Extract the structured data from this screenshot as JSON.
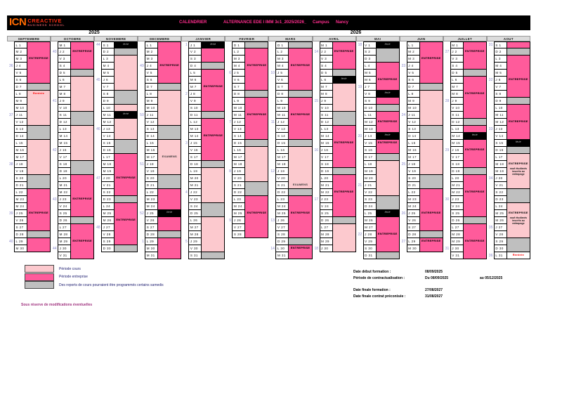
{
  "header": {
    "logo": {
      "icn": "ICN",
      "creactive": "CREACTIVE",
      "school": "BUSINESS SCHOOL"
    },
    "title_left": "CALENDRIER",
    "title_right": "ALTERNANCE EDE I IMM 3c1_2025/2026_",
    "campus_label": "Campus",
    "campus_value": "Nancy"
  },
  "year_groups": [
    {
      "label": "2025"
    },
    {
      "label": "2026"
    }
  ],
  "day_letters": [
    "L",
    "M",
    "M",
    "J",
    "V",
    "S",
    "D"
  ],
  "cell_types": {
    "e": "#FF5B9B",
    "c": "#FCC9CE",
    "w": "#BFBFBF",
    "f": "#000000",
    "b": "#FFFFFF"
  },
  "months": [
    {
      "name": "SEPTEMBRE",
      "days": 30,
      "start": 0,
      "spans": [
        {
          "f": 1,
          "t": 6,
          "t2": "e"
        },
        {
          "f": 7,
          "t": 7,
          "t2": "w"
        },
        {
          "f": 8,
          "t": 12,
          "t2": "c"
        },
        {
          "f": 13,
          "t": 14,
          "t2": "w"
        },
        {
          "f": 15,
          "t": 19,
          "t2": "c"
        },
        {
          "f": 20,
          "t": 21,
          "t2": "w"
        },
        {
          "f": 22,
          "t": 27,
          "t2": "e"
        },
        {
          "f": 28,
          "t": 28,
          "t2": "w"
        },
        {
          "f": 29,
          "t": 30,
          "t2": "e"
        }
      ],
      "labels": [
        {
          "day": 3,
          "text": "ENTREPRISE"
        },
        {
          "day": 8,
          "text": "Rentrée",
          "color": "#FF0000"
        },
        {
          "day": 25,
          "text": "ENTREPRISE"
        }
      ],
      "weeks": {
        "4": 36,
        "11": 37,
        "18": 38,
        "25": 39,
        "29": 40
      }
    },
    {
      "name": "OCTOBRE",
      "days": 31,
      "start": 2,
      "spans": [
        {
          "f": 1,
          "t": 4,
          "t2": "e"
        },
        {
          "f": 5,
          "t": 5,
          "t2": "w"
        },
        {
          "f": 6,
          "t": 10,
          "t2": "c"
        },
        {
          "f": 11,
          "t": 12,
          "t2": "w"
        },
        {
          "f": 13,
          "t": 17,
          "t2": "c"
        },
        {
          "f": 18,
          "t": 19,
          "t2": "w"
        },
        {
          "f": 20,
          "t": 25,
          "t2": "e"
        },
        {
          "f": 26,
          "t": 26,
          "t2": "w"
        },
        {
          "f": 27,
          "t": 31,
          "t2": "e"
        }
      ],
      "labels": [
        {
          "day": 2,
          "text": "ENTREPRISE"
        },
        {
          "day": 23,
          "text": "ENTREPRISE"
        },
        {
          "day": 29,
          "text": "ENTREPRISE"
        }
      ],
      "weeks": {
        "2": 40,
        "9": 41,
        "16": 42,
        "23": 43,
        "30": 44
      }
    },
    {
      "name": "NOVEMBRE",
      "days": 30,
      "start": 5,
      "spans": [
        {
          "f": 1,
          "t": 1,
          "t2": "f"
        },
        {
          "f": 2,
          "t": 2,
          "t2": "w"
        },
        {
          "f": 3,
          "t": 7,
          "t2": "c"
        },
        {
          "f": 8,
          "t": 9,
          "t2": "w"
        },
        {
          "f": 10,
          "t": 10,
          "t2": "c"
        },
        {
          "f": 11,
          "t": 11,
          "t2": "f"
        },
        {
          "f": 12,
          "t": 14,
          "t2": "c"
        },
        {
          "f": 15,
          "t": 16,
          "t2": "w"
        },
        {
          "f": 17,
          "t": 22,
          "t2": "e"
        },
        {
          "f": 23,
          "t": 23,
          "t2": "w"
        },
        {
          "f": 24,
          "t": 29,
          "t2": "e"
        },
        {
          "f": 30,
          "t": 30,
          "t2": "w"
        }
      ],
      "labels": [
        {
          "day": 1,
          "text": "férié"
        },
        {
          "day": 11,
          "text": "férié"
        },
        {
          "day": 20,
          "text": "ENTREPRISE"
        },
        {
          "day": 26,
          "text": "ENTREPRISE"
        }
      ],
      "weeks": {
        "1": 44,
        "6": 45,
        "13": 46,
        "20": 47,
        "27": 48
      }
    },
    {
      "name": "DECEMBRE",
      "days": 31,
      "start": 0,
      "spans": [
        {
          "f": 1,
          "t": 6,
          "t2": "e"
        },
        {
          "f": 7,
          "t": 7,
          "t2": "w"
        },
        {
          "f": 8,
          "t": 12,
          "t2": "c"
        },
        {
          "f": 13,
          "t": 14,
          "t2": "w"
        },
        {
          "f": 15,
          "t": 19,
          "t2": "c"
        },
        {
          "f": 20,
          "t": 21,
          "t2": "w"
        },
        {
          "f": 22,
          "t": 24,
          "t2": "e"
        },
        {
          "f": 25,
          "t": 25,
          "t2": "f"
        },
        {
          "f": 26,
          "t": 27,
          "t2": "e"
        },
        {
          "f": 28,
          "t": 28,
          "t2": "w"
        },
        {
          "f": 29,
          "t": 31,
          "t2": "e"
        }
      ],
      "labels": [
        {
          "day": 4,
          "text": "ENTREPRISE"
        },
        {
          "day": 17,
          "text": "EXAMENS",
          "color": "#333333"
        },
        {
          "day": 25,
          "text": "férié"
        }
      ],
      "weeks": {
        "4": 49,
        "11": 50,
        "18": 51,
        "25": 52,
        "29": 1
      }
    },
    {
      "name": "JANVIER",
      "days": 31,
      "start": 3,
      "spans": [
        {
          "f": 1,
          "t": 1,
          "t2": "f"
        },
        {
          "f": 2,
          "t": 3,
          "t2": "e"
        },
        {
          "f": 4,
          "t": 4,
          "t2": "w"
        },
        {
          "f": 5,
          "t": 10,
          "t2": "e"
        },
        {
          "f": 11,
          "t": 11,
          "t2": "w"
        },
        {
          "f": 12,
          "t": 17,
          "t2": "e"
        },
        {
          "f": 18,
          "t": 18,
          "t2": "w"
        },
        {
          "f": 19,
          "t": 23,
          "t2": "c"
        },
        {
          "f": 24,
          "t": 25,
          "t2": "w"
        },
        {
          "f": 26,
          "t": 30,
          "t2": "c"
        },
        {
          "f": 31,
          "t": 31,
          "t2": "w"
        }
      ],
      "labels": [
        {
          "day": 1,
          "text": "férié"
        },
        {
          "day": 7,
          "text": "ENTREPRISE"
        },
        {
          "day": 14,
          "text": "ENTREPRISE"
        }
      ],
      "weeks": {
        "1": 1,
        "8": 2,
        "15": 3,
        "22": 4,
        "29": 5
      }
    },
    {
      "name": "FEVRIER",
      "days": 28,
      "start": 6,
      "spans": [
        {
          "f": 1,
          "t": 1,
          "t2": "w"
        },
        {
          "f": 2,
          "t": 7,
          "t2": "e"
        },
        {
          "f": 8,
          "t": 8,
          "t2": "w"
        },
        {
          "f": 9,
          "t": 14,
          "t2": "e"
        },
        {
          "f": 15,
          "t": 15,
          "t2": "w"
        },
        {
          "f": 16,
          "t": 20,
          "t2": "c"
        },
        {
          "f": 21,
          "t": 22,
          "t2": "w"
        },
        {
          "f": 23,
          "t": 28,
          "t2": "e"
        }
      ],
      "labels": [
        {
          "day": 4,
          "text": "ENTREPRISE"
        },
        {
          "day": 11,
          "text": "ENTREPRISE"
        },
        {
          "day": 25,
          "text": "ENTREPRISE"
        }
      ],
      "weeks": {
        "5": 6,
        "12": 7,
        "19": 8,
        "26": 9
      }
    },
    {
      "name": "MARS",
      "days": 31,
      "start": 6,
      "spans": [
        {
          "f": 1,
          "t": 1,
          "t2": "w"
        },
        {
          "f": 2,
          "t": 7,
          "t2": "e"
        },
        {
          "f": 8,
          "t": 8,
          "t2": "w"
        },
        {
          "f": 9,
          "t": 14,
          "t2": "e"
        },
        {
          "f": 15,
          "t": 15,
          "t2": "w"
        },
        {
          "f": 16,
          "t": 21,
          "t2": "c"
        },
        {
          "f": 22,
          "t": 22,
          "t2": "w"
        },
        {
          "f": 23,
          "t": 28,
          "t2": "e"
        },
        {
          "f": 29,
          "t": 29,
          "t2": "w"
        },
        {
          "f": 30,
          "t": 31,
          "t2": "e"
        }
      ],
      "labels": [
        {
          "day": 4,
          "text": "ENTREPRISE"
        },
        {
          "day": 11,
          "text": "ENTREPRISE"
        },
        {
          "day": 21,
          "text": "EXAMENS",
          "color": "#333333"
        },
        {
          "day": 25,
          "text": "ENTREPRISE"
        },
        {
          "day": 30,
          "text": "ENTREPRISE"
        }
      ],
      "weeks": {
        "5": 10,
        "12": 11,
        "19": 12,
        "26": 13,
        "30": 14
      }
    },
    {
      "name": "AVRIL",
      "days": 30,
      "start": 2,
      "spans": [
        {
          "f": 1,
          "t": 4,
          "t2": "e"
        },
        {
          "f": 5,
          "t": 5,
          "t2": "w"
        },
        {
          "f": 6,
          "t": 6,
          "t2": "f"
        },
        {
          "f": 7,
          "t": 10,
          "t2": "c"
        },
        {
          "f": 11,
          "t": 12,
          "t2": "w"
        },
        {
          "f": 13,
          "t": 18,
          "t2": "e"
        },
        {
          "f": 19,
          "t": 19,
          "t2": "w"
        },
        {
          "f": 20,
          "t": 25,
          "t2": "e"
        },
        {
          "f": 26,
          "t": 26,
          "t2": "w"
        },
        {
          "f": 27,
          "t": 30,
          "t2": "c"
        }
      ],
      "labels": [
        {
          "day": 2,
          "text": "ENTREPRISE"
        },
        {
          "day": 6,
          "text": "férié"
        },
        {
          "day": 15,
          "text": "ENTREPRISE"
        },
        {
          "day": 22,
          "text": "ENTREPRISE"
        }
      ],
      "weeks": {
        "2": 14,
        "9": 15,
        "16": 16,
        "23": 17,
        "30": 18
      }
    },
    {
      "name": "MAI",
      "days": 31,
      "start": 4,
      "spans": [
        {
          "f": 1,
          "t": 1,
          "t2": "f"
        },
        {
          "f": 2,
          "t": 3,
          "t2": "w"
        },
        {
          "f": 4,
          "t": 7,
          "t2": "e"
        },
        {
          "f": 8,
          "t": 8,
          "t2": "f"
        },
        {
          "f": 9,
          "t": 9,
          "t2": "e"
        },
        {
          "f": 10,
          "t": 10,
          "t2": "w"
        },
        {
          "f": 11,
          "t": 13,
          "t2": "e"
        },
        {
          "f": 14,
          "t": 14,
          "t2": "f"
        },
        {
          "f": 15,
          "t": 16,
          "t2": "e"
        },
        {
          "f": 17,
          "t": 17,
          "t2": "w"
        },
        {
          "f": 18,
          "t": 22,
          "t2": "c"
        },
        {
          "f": 23,
          "t": 24,
          "t2": "w"
        },
        {
          "f": 25,
          "t": 25,
          "t2": "f"
        },
        {
          "f": 26,
          "t": 30,
          "t2": "e"
        },
        {
          "f": 31,
          "t": 31,
          "t2": "w"
        }
      ],
      "labels": [
        {
          "day": 1,
          "text": "férié"
        },
        {
          "day": 6,
          "text": "ENTREPRISE"
        },
        {
          "day": 8,
          "text": "férié"
        },
        {
          "day": 12,
          "text": "ENTREPRISE"
        },
        {
          "day": 14,
          "text": "férié"
        },
        {
          "day": 15,
          "text": "ENTREPRISE"
        },
        {
          "day": 25,
          "text": "férié"
        },
        {
          "day": 28,
          "text": "ENTREPRISE"
        }
      ],
      "weeks": {
        "1": 18,
        "7": 19,
        "14": 20,
        "21": 21,
        "28": 22
      }
    },
    {
      "name": "JUIN",
      "days": 30,
      "start": 0,
      "spans": [
        {
          "f": 1,
          "t": 6,
          "t2": "e"
        },
        {
          "f": 7,
          "t": 7,
          "t2": "w"
        },
        {
          "f": 8,
          "t": 12,
          "t2": "c"
        },
        {
          "f": 13,
          "t": 14,
          "t2": "w"
        },
        {
          "f": 15,
          "t": 19,
          "t2": "c"
        },
        {
          "f": 20,
          "t": 21,
          "t2": "w"
        },
        {
          "f": 22,
          "t": 27,
          "t2": "e"
        },
        {
          "f": 28,
          "t": 28,
          "t2": "w"
        },
        {
          "f": 29,
          "t": 30,
          "t2": "e"
        }
      ],
      "labels": [
        {
          "day": 3,
          "text": "ENTREPRISE"
        },
        {
          "day": 25,
          "text": "ENTREPRISE"
        },
        {
          "day": 29,
          "text": "ENTREPRISE"
        }
      ],
      "weeks": {
        "4": 23,
        "11": 24,
        "18": 25,
        "25": 26,
        "29": 27
      }
    },
    {
      "name": "JUILLET",
      "days": 31,
      "start": 2,
      "spans": [
        {
          "f": 1,
          "t": 4,
          "t2": "e"
        },
        {
          "f": 5,
          "t": 5,
          "t2": "w"
        },
        {
          "f": 6,
          "t": 11,
          "t2": "e"
        },
        {
          "f": 12,
          "t": 12,
          "t2": "w"
        },
        {
          "f": 13,
          "t": 13,
          "t2": "e"
        },
        {
          "f": 14,
          "t": 14,
          "t2": "f"
        },
        {
          "f": 15,
          "t": 18,
          "t2": "e"
        },
        {
          "f": 19,
          "t": 19,
          "t2": "w"
        },
        {
          "f": 20,
          "t": 25,
          "t2": "e"
        },
        {
          "f": 26,
          "t": 26,
          "t2": "w"
        },
        {
          "f": 27,
          "t": 31,
          "t2": "e"
        }
      ],
      "labels": [
        {
          "day": 2,
          "text": "ENTREPRISE"
        },
        {
          "day": 8,
          "text": "ENTREPRISE"
        },
        {
          "day": 14,
          "text": "férié"
        },
        {
          "day": 16,
          "text": "ENTREPRISE"
        },
        {
          "day": 22,
          "text": "ENTREPRISE"
        },
        {
          "day": 29,
          "text": "ENTREPRISE"
        }
      ],
      "weeks": {
        "2": 27,
        "9": 28,
        "16": 29,
        "23": 30,
        "30": 31
      }
    },
    {
      "name": "AOUT",
      "days": 31,
      "start": 5,
      "spans": [
        {
          "f": 1,
          "t": 1,
          "t2": "e"
        },
        {
          "f": 2,
          "t": 2,
          "t2": "w"
        },
        {
          "f": 3,
          "t": 8,
          "t2": "e"
        },
        {
          "f": 9,
          "t": 9,
          "t2": "w"
        },
        {
          "f": 10,
          "t": 14,
          "t2": "e"
        },
        {
          "f": 15,
          "t": 15,
          "t2": "f"
        },
        {
          "f": 16,
          "t": 16,
          "t2": "w"
        },
        {
          "f": 17,
          "t": 21,
          "t2": "c"
        },
        {
          "f": 22,
          "t": 23,
          "t2": "w"
        },
        {
          "f": 24,
          "t": 28,
          "t2": "c"
        },
        {
          "f": 29,
          "t": 30,
          "t2": "w"
        },
        {
          "f": 31,
          "t": 31,
          "t2": "b"
        }
      ],
      "labels": [
        {
          "day": 6,
          "text": "ENTREPRISE"
        },
        {
          "day": 12,
          "text": "ENTREPRISE"
        },
        {
          "day": 15,
          "text": "férié"
        },
        {
          "day": 18,
          "text": "ENTREPRISE",
          "sub": "sauf étudiants inscrits au rattrapage"
        },
        {
          "day": 25,
          "text": "ENTREPRISE",
          "sub": "sauf étudiants inscrits au rattrapage"
        },
        {
          "day": 31,
          "text": "Rentrée",
          "color": "#FF0000"
        }
      ],
      "weeks": {
        "1": 31,
        "6": 32,
        "13": 33,
        "20": 34,
        "27": 35,
        "31": 36
      }
    }
  ],
  "legend": [
    {
      "type": "c",
      "text": "Période cours"
    },
    {
      "type": "e",
      "text": "Période entreprise"
    },
    {
      "type": "w",
      "text": "Des reports de cours pourraient être programmés certains samedis"
    }
  ],
  "note": "Sous réserve de modifications éventuelles",
  "dates": [
    {
      "label": "Date début formation :",
      "v1": "08/09/2025",
      "v2": ""
    },
    {
      "label": "Période de contractualisation :",
      "v1": "Du 08/09/2025",
      "v2": "au 05/12/2025"
    },
    {
      "label": "Date finale formation :",
      "v1": "27/08/2027",
      "v2": ""
    },
    {
      "label": "Date finale contrat préconisée :",
      "v1": "31/08/2027",
      "v2": ""
    }
  ]
}
